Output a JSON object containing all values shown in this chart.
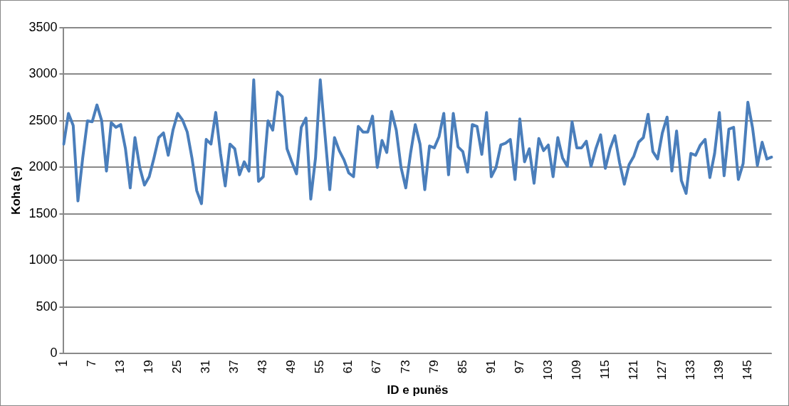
{
  "chart_data": {
    "type": "line",
    "xlabel": "ID e punës",
    "ylabel": "Koha (s)",
    "categories": [
      "1",
      null,
      null,
      null,
      null,
      null,
      "7",
      null,
      null,
      null,
      null,
      null,
      "13",
      null,
      null,
      null,
      null,
      null,
      "19",
      null,
      null,
      null,
      null,
      null,
      "25",
      null,
      null,
      null,
      null,
      null,
      "31",
      null,
      null,
      null,
      null,
      null,
      "37",
      null,
      null,
      null,
      null,
      null,
      "43",
      null,
      null,
      null,
      null,
      null,
      "49",
      null,
      null,
      null,
      null,
      null,
      "55",
      null,
      null,
      null,
      null,
      null,
      "61",
      null,
      null,
      null,
      null,
      null,
      "67",
      null,
      null,
      null,
      null,
      null,
      "73",
      null,
      null,
      null,
      null,
      null,
      "79",
      null,
      null,
      null,
      null,
      null,
      "85",
      null,
      null,
      null,
      null,
      null,
      "91",
      null,
      null,
      null,
      null,
      null,
      "97",
      null,
      null,
      null,
      null,
      null,
      "103",
      null,
      null,
      null,
      null,
      null,
      "109",
      null,
      null,
      null,
      null,
      null,
      "115",
      null,
      null,
      null,
      null,
      null,
      "121",
      null,
      null,
      null,
      null,
      null,
      "127",
      null,
      null,
      null,
      null,
      null,
      "133",
      null,
      null,
      null,
      null,
      null,
      "139",
      null,
      null,
      null,
      null,
      null,
      "145",
      null,
      null,
      null,
      null,
      null
    ],
    "series": [
      {
        "color": "#4a7ebb",
        "values": [
          2250,
          2580,
          2450,
          1640,
          2100,
          2500,
          2490,
          2670,
          2500,
          1960,
          2480,
          2430,
          2460,
          2200,
          1780,
          2320,
          2000,
          1810,
          1900,
          2100,
          2320,
          2370,
          2130,
          2400,
          2580,
          2510,
          2380,
          2100,
          1750,
          1610,
          2300,
          2250,
          2590,
          2150,
          1800,
          2250,
          2200,
          1920,
          2060,
          1960,
          2940,
          1850,
          1900,
          2500,
          2400,
          2810,
          2760,
          2200,
          2060,
          1930,
          2430,
          2530,
          1660,
          2100,
          2940,
          2350,
          1760,
          2320,
          2180,
          2080,
          1940,
          1900,
          2440,
          2380,
          2380,
          2550,
          2000,
          2290,
          2160,
          2600,
          2400,
          2000,
          1780,
          2150,
          2460,
          2250,
          1760,
          2230,
          2210,
          2330,
          2580,
          1920,
          2580,
          2220,
          2170,
          1950,
          2460,
          2440,
          2140,
          2590,
          1900,
          2000,
          2240,
          2260,
          2300,
          1870,
          2520,
          2060,
          2200,
          1830,
          2310,
          2180,
          2240,
          1900,
          2320,
          2100,
          2010,
          2490,
          2210,
          2210,
          2280,
          2010,
          2200,
          2350,
          1990,
          2200,
          2340,
          2050,
          1820,
          2030,
          2120,
          2270,
          2320,
          2570,
          2170,
          2090,
          2370,
          2540,
          1960,
          2390,
          1860,
          1720,
          2150,
          2130,
          2240,
          2300,
          1890,
          2150,
          2590,
          1910,
          2410,
          2430,
          1870,
          2040,
          2700,
          2420,
          2020,
          2270,
          2090,
          2110
        ]
      }
    ],
    "ylim": [
      0,
      3500
    ],
    "yticks": [
      0,
      500,
      1000,
      1500,
      2000,
      2500,
      3000,
      3500
    ],
    "grid": "y",
    "legend": false,
    "marker": "none",
    "line_style": "solid"
  }
}
